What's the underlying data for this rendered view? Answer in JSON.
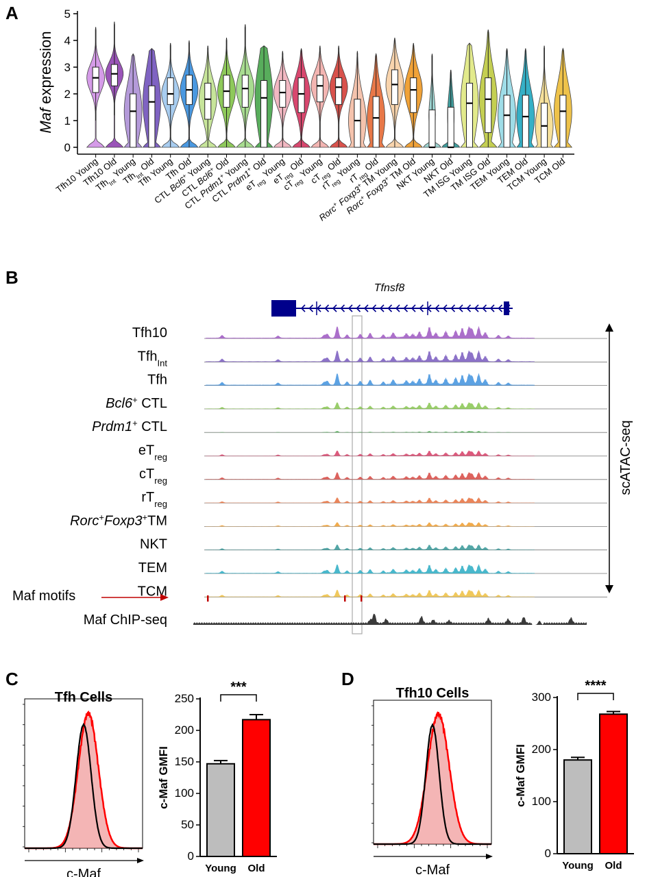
{
  "panels": {
    "A": "A",
    "B": "B",
    "C": "C",
    "D": "D"
  },
  "chart_data": [
    {
      "id": "A",
      "type": "violin",
      "ylabel_italic": "Maf",
      "ylabel_rest": " expression",
      "ylim": [
        0,
        5
      ],
      "yticks": [
        "0",
        "1",
        "2",
        "3",
        "4",
        "5"
      ],
      "categories": [
        {
          "label": "Tfh10 Young",
          "median": 2.6,
          "q1": 2.05,
          "q3": 3.0,
          "wlo": 1.0,
          "whi": 4.5,
          "color": "#d59be8"
        },
        {
          "label": "Tfh10 Old",
          "median": 2.75,
          "q1": 2.3,
          "q3": 3.1,
          "wlo": 1.2,
          "whi": 4.7,
          "color": "#9a54b8"
        },
        {
          "label": "Tfh_Int Young",
          "median": 1.35,
          "q1": 0.0,
          "q3": 2.0,
          "wlo": 0.0,
          "whi": 3.5,
          "color": "#b49ad9"
        },
        {
          "label": "Tfh_Int Old",
          "median": 1.7,
          "q1": 0.0,
          "q3": 2.3,
          "wlo": 0.0,
          "whi": 3.7,
          "color": "#7f63c2"
        },
        {
          "label": "Tfh Young",
          "median": 2.0,
          "q1": 1.6,
          "q3": 2.6,
          "wlo": 0.0,
          "whi": 3.9,
          "color": "#a8cdf0"
        },
        {
          "label": "Tfh Old",
          "median": 2.15,
          "q1": 1.6,
          "q3": 2.7,
          "wlo": 0.0,
          "whi": 4.0,
          "color": "#4a98e0"
        },
        {
          "label": "CTL Bcl6+ Young",
          "median": 1.8,
          "q1": 1.05,
          "q3": 2.4,
          "wlo": 0.0,
          "whi": 3.8,
          "color": "#c7e59a"
        },
        {
          "label": "CTL Bcl6+ Old",
          "median": 2.1,
          "q1": 1.5,
          "q3": 2.7,
          "wlo": 0.0,
          "whi": 4.1,
          "color": "#8ec95a"
        },
        {
          "label": "CTL Prdm1+ Young",
          "median": 2.2,
          "q1": 1.5,
          "q3": 2.7,
          "wlo": 0.0,
          "whi": 4.6,
          "color": "#a8dc90"
        },
        {
          "label": "CTL Prdm1+ Old",
          "median": 1.85,
          "q1": 0.0,
          "q3": 2.5,
          "wlo": 0.0,
          "whi": 3.8,
          "color": "#58ad5c"
        },
        {
          "label": "eT_reg Young",
          "median": 2.05,
          "q1": 1.5,
          "q3": 2.5,
          "wlo": 0.0,
          "whi": 3.6,
          "color": "#f2b8c2"
        },
        {
          "label": "eT_reg Old",
          "median": 2.0,
          "q1": 1.3,
          "q3": 2.6,
          "wlo": 0.0,
          "whi": 3.7,
          "color": "#d8476e"
        },
        {
          "label": "cT_reg Young",
          "median": 2.3,
          "q1": 1.7,
          "q3": 2.7,
          "wlo": 0.0,
          "whi": 3.8,
          "color": "#f3b5b2"
        },
        {
          "label": "cT_reg Old",
          "median": 2.25,
          "q1": 1.6,
          "q3": 2.6,
          "wlo": 0.0,
          "whi": 3.8,
          "color": "#d9524c"
        },
        {
          "label": "rT_reg Young",
          "median": 1.0,
          "q1": 0.0,
          "q3": 1.8,
          "wlo": 0.0,
          "whi": 3.6,
          "color": "#f5c3ad"
        },
        {
          "label": "rT_reg Old",
          "median": 1.1,
          "q1": 0.0,
          "q3": 1.9,
          "wlo": 0.0,
          "whi": 3.5,
          "color": "#e87848"
        },
        {
          "label": "Rorc+ Foxp3+ TM Young",
          "median": 2.35,
          "q1": 1.6,
          "q3": 2.9,
          "wlo": 0.0,
          "whi": 4.1,
          "color": "#f8d4ad"
        },
        {
          "label": "Rorc+ Foxp3+ TM Old",
          "median": 2.15,
          "q1": 1.3,
          "q3": 2.6,
          "wlo": 0.0,
          "whi": 3.9,
          "color": "#f0a238"
        },
        {
          "label": "NKT Young",
          "median": 0.0,
          "q1": 0.0,
          "q3": 1.4,
          "wlo": 0.0,
          "whi": 3.5,
          "color": "#9cd2cf"
        },
        {
          "label": "NKT Old",
          "median": 0.0,
          "q1": 0.0,
          "q3": 1.5,
          "wlo": 0.0,
          "whi": 2.9,
          "color": "#3f9c9c"
        },
        {
          "label": "TM ISG Young",
          "median": 1.65,
          "q1": 0.0,
          "q3": 2.4,
          "wlo": 0.0,
          "whi": 3.9,
          "color": "#e2ea8c"
        },
        {
          "label": "TM ISG Old",
          "median": 1.8,
          "q1": 0.55,
          "q3": 2.6,
          "wlo": 0.0,
          "whi": 4.4,
          "color": "#c4cf52"
        },
        {
          "label": "TEM Young",
          "median": 1.2,
          "q1": 0.0,
          "q3": 1.95,
          "wlo": 0.0,
          "whi": 3.7,
          "color": "#9fdde8"
        },
        {
          "label": "TEM Old",
          "median": 1.15,
          "q1": 0.0,
          "q3": 1.95,
          "wlo": 0.0,
          "whi": 3.7,
          "color": "#35b0c6"
        },
        {
          "label": "TCM Young",
          "median": 0.8,
          "q1": 0.0,
          "q3": 1.65,
          "wlo": 0.0,
          "whi": 3.8,
          "color": "#f6e09a"
        },
        {
          "label": "TCM Old",
          "median": 1.35,
          "q1": 0.0,
          "q3": 1.95,
          "wlo": 0.0,
          "whi": 3.7,
          "color": "#eec24a"
        }
      ]
    },
    {
      "id": "B",
      "type": "genome_tracks",
      "gene": "Tfnsf8",
      "side_label": "scATAC-seq",
      "tracks": [
        {
          "name": "Tfh10",
          "sub": "",
          "italic": "",
          "color": "#a25fc4",
          "scale": 1.0
        },
        {
          "name": "Tfh",
          "sub": "Int",
          "italic": "",
          "color": "#7f63c2",
          "scale": 0.95
        },
        {
          "name": "Tfh",
          "sub": "",
          "italic": "",
          "color": "#4a98e0",
          "scale": 1.0
        },
        {
          "name": " CTL",
          "sub": "",
          "italic": "Bcl6",
          "sup": "+",
          "color": "#8ec95a",
          "scale": 0.55
        },
        {
          "name": " CTL",
          "sub": "",
          "italic": "Prdm1",
          "sup": "+",
          "color": "#58ad5c",
          "scale": 0.12
        },
        {
          "name": "eT",
          "sub": "reg",
          "italic": "",
          "color": "#d8476e",
          "scale": 0.45
        },
        {
          "name": "cT",
          "sub": "reg",
          "italic": "",
          "color": "#d9524c",
          "scale": 0.6
        },
        {
          "name": "rT",
          "sub": "reg",
          "italic": "",
          "color": "#e87848",
          "scale": 0.45
        },
        {
          "name": "TM",
          "sub": "",
          "italic": "Rorc",
          "sup": "+",
          "italic2": "Foxp3",
          "sup2": "+",
          "color": "#f0a238",
          "scale": 0.35
        },
        {
          "name": "NKT",
          "sub": "",
          "italic": "",
          "color": "#3f9c9c",
          "scale": 0.45
        },
        {
          "name": "TEM",
          "sub": "",
          "italic": "",
          "color": "#35b0c6",
          "scale": 0.75
        },
        {
          "name": "TCM",
          "sub": "",
          "italic": "",
          "color": "#eec24a",
          "scale": 0.6
        }
      ],
      "motif_label": "Maf motifs",
      "chip_label": "Maf ChIP-seq"
    },
    {
      "id": "C",
      "type": "histogram+bar",
      "hist_title": "Tfh Cells",
      "hist_xlabel": "c-Maf",
      "ylabel": "c-Maf GMFI",
      "ylim": [
        0,
        250
      ],
      "yticks": [
        "0",
        "50",
        "100",
        "150",
        "200",
        "250"
      ],
      "categories": [
        "Young",
        "Old"
      ],
      "values": [
        147,
        217
      ],
      "errors": [
        5,
        8
      ],
      "colors": [
        "#bdbdbd",
        "#ff0000"
      ],
      "significance": "***"
    },
    {
      "id": "D",
      "type": "histogram+bar",
      "hist_title": "Tfh10 Cells",
      "hist_xlabel": "c-Maf",
      "ylabel": "c-Maf GMFI",
      "ylim": [
        0,
        300
      ],
      "yticks": [
        "0",
        "100",
        "200",
        "300"
      ],
      "categories": [
        "Young",
        "Old"
      ],
      "values": [
        180,
        268
      ],
      "errors": [
        5,
        5
      ],
      "colors": [
        "#bdbdbd",
        "#ff0000"
      ],
      "significance": "****"
    }
  ]
}
